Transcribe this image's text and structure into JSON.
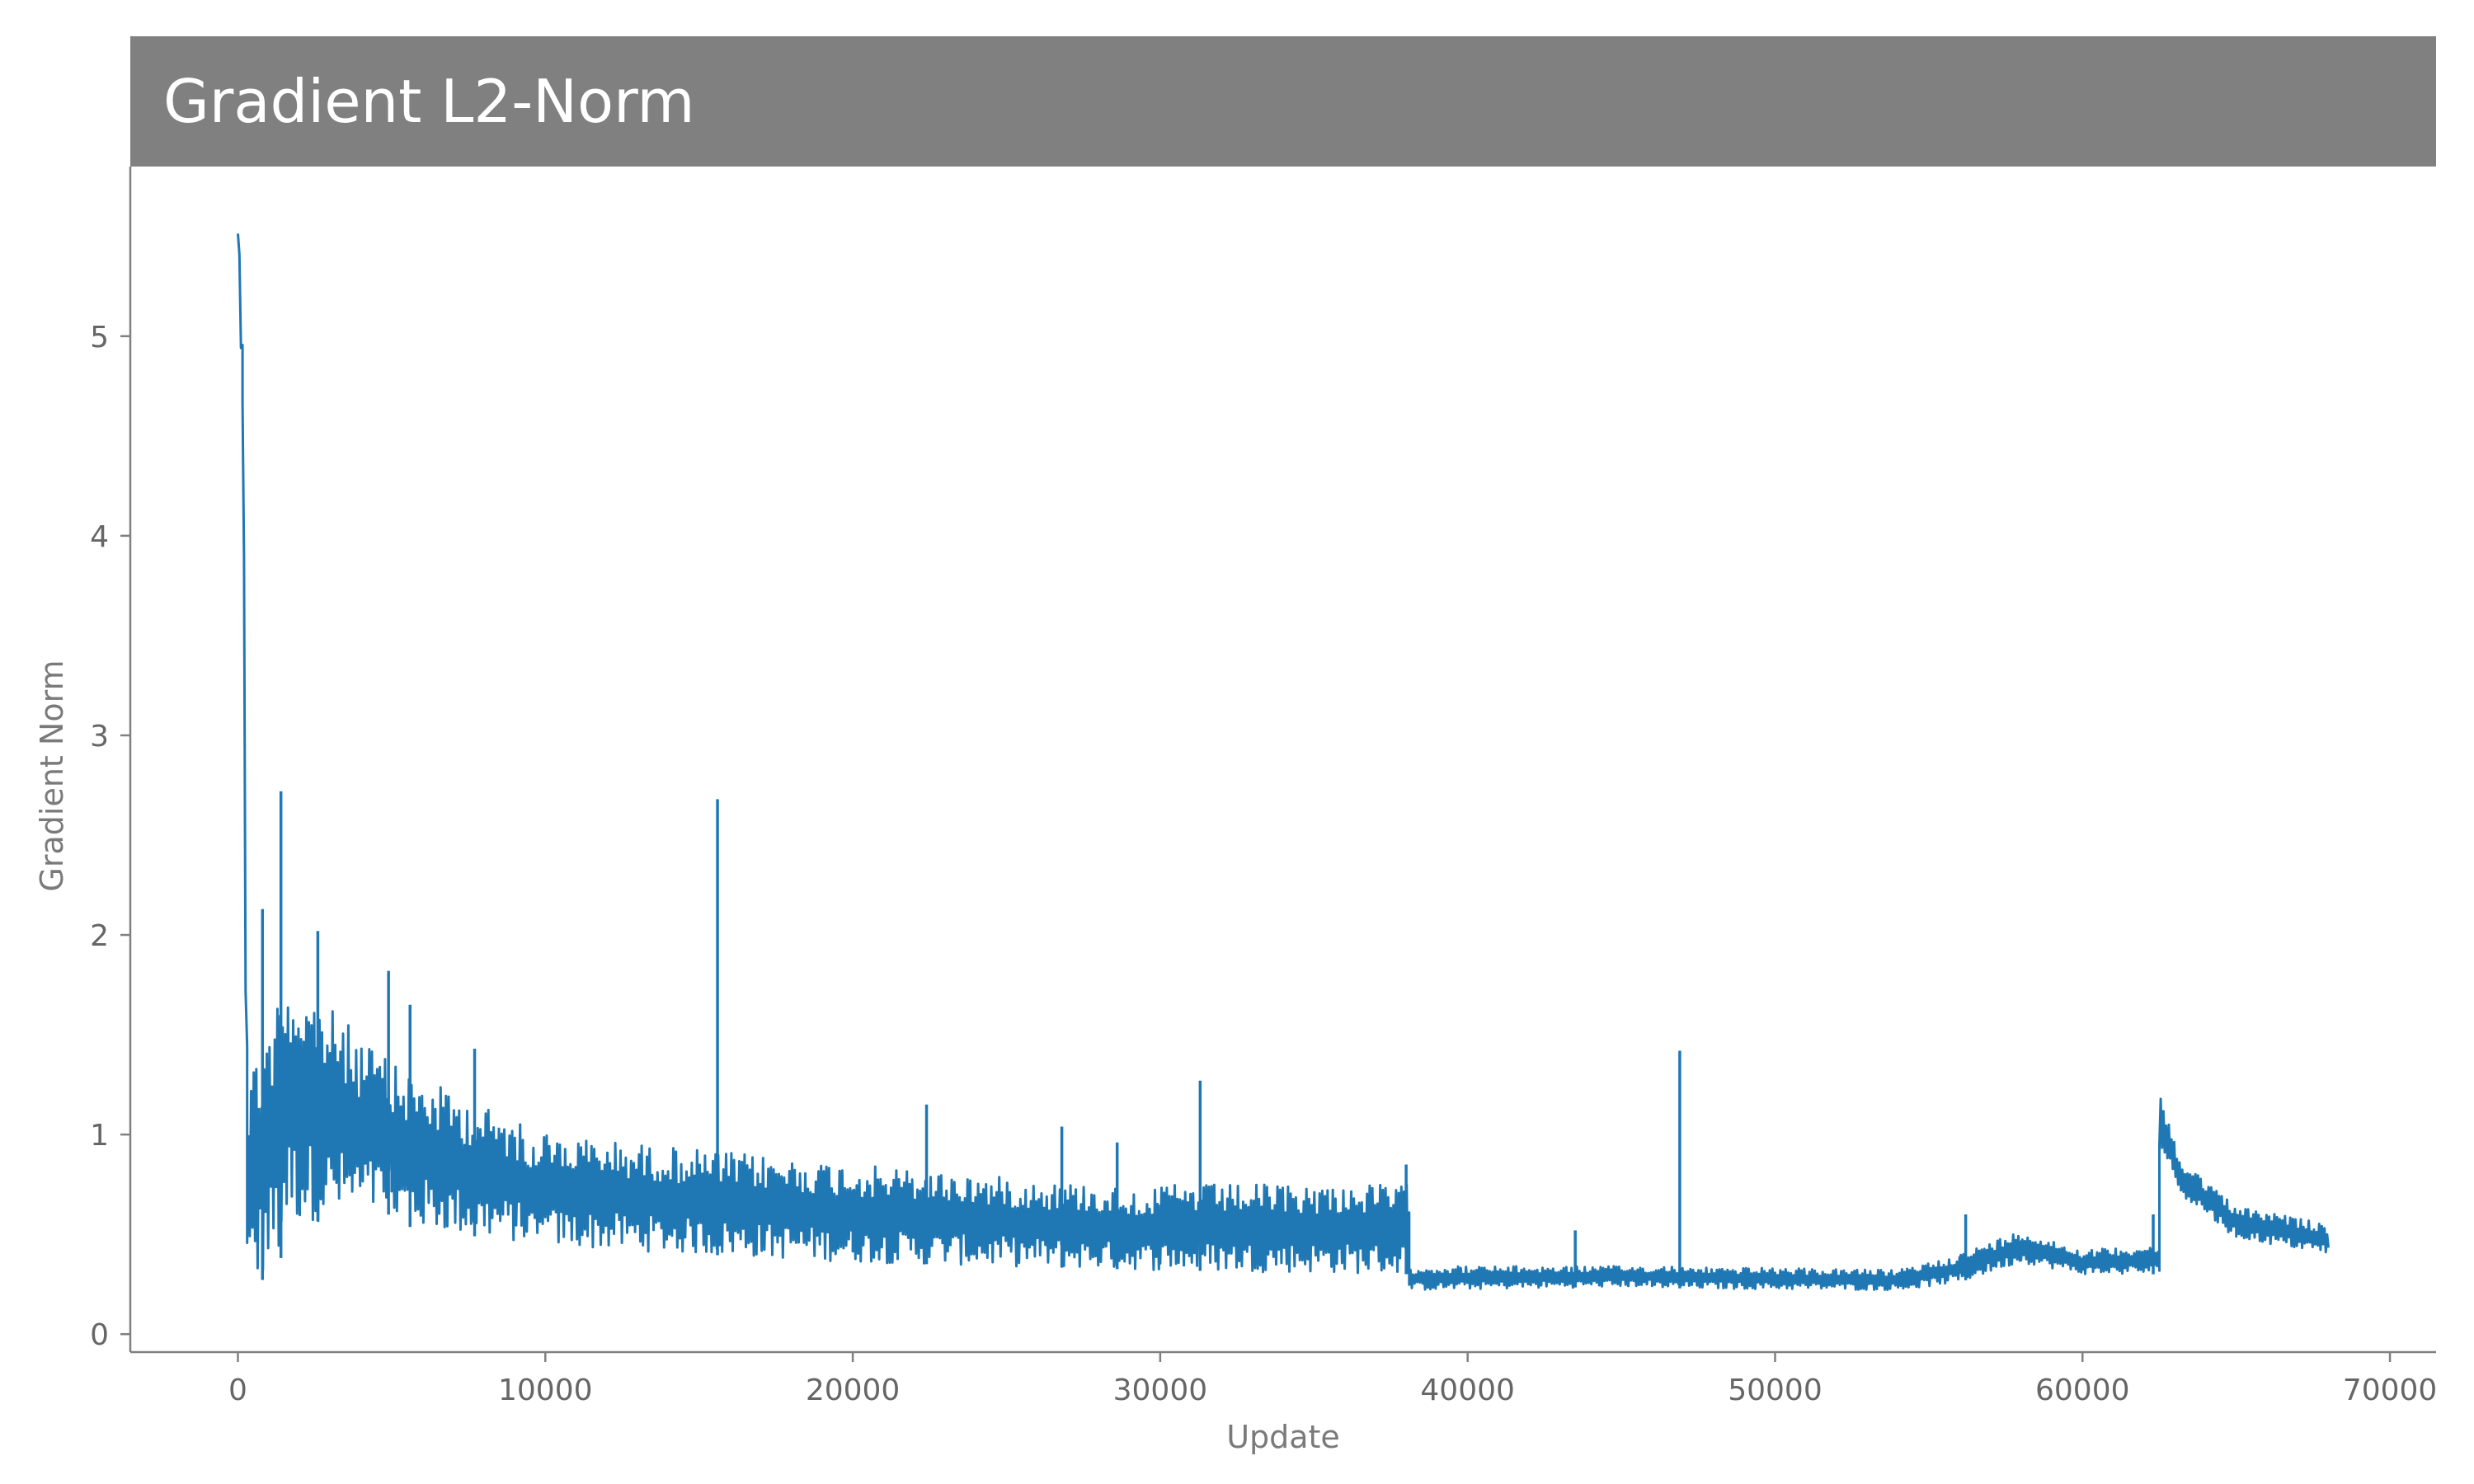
{
  "chart_data": {
    "type": "line",
    "title": "Gradient L2-Norm",
    "xlabel": "Update",
    "ylabel": "Gradient Norm",
    "xlim": [
      -3500,
      71500
    ],
    "ylim": [
      -0.09,
      5.85
    ],
    "xticks": [
      0,
      10000,
      20000,
      30000,
      40000,
      50000,
      60000,
      70000
    ],
    "yticks": [
      0,
      1,
      2,
      3,
      4,
      5
    ],
    "grid": false,
    "legend": "none",
    "colors": {
      "line": "#1f77b4",
      "title_bg": "#808080",
      "title_text": "#ffffff",
      "axis": "#808080",
      "tick_text": "#666666"
    },
    "series": [
      {
        "segments": [
          {
            "x0": 0,
            "x1": 150,
            "lo0": 5.5,
            "lo1": 4.5,
            "hi0": 5.56,
            "hi1": 5.2
          },
          {
            "x0": 150,
            "x1": 300,
            "lo0": 4.5,
            "lo1": 0.2,
            "hi0": 5.2,
            "hi1": 2.0
          },
          {
            "x0": 300,
            "x1": 1500,
            "lo0": 0.18,
            "lo1": 0.4,
            "hi0": 1.3,
            "hi1": 1.8
          },
          {
            "x0": 1500,
            "x1": 5000,
            "lo0": 0.55,
            "lo1": 0.6,
            "hi0": 1.85,
            "hi1": 1.35
          },
          {
            "x0": 5000,
            "x1": 10000,
            "lo0": 0.55,
            "lo1": 0.44,
            "hi0": 1.35,
            "hi1": 1.0
          },
          {
            "x0": 10000,
            "x1": 20000,
            "lo0": 0.44,
            "lo1": 0.36,
            "hi0": 1.0,
            "hi1": 0.85
          },
          {
            "x0": 20000,
            "x1": 30000,
            "lo0": 0.36,
            "lo1": 0.32,
            "hi0": 0.85,
            "hi1": 0.72
          },
          {
            "x0": 30000,
            "x1": 38100,
            "lo0": 0.32,
            "lo1": 0.3,
            "hi0": 0.75,
            "hi1": 0.75
          },
          {
            "x0": 38100,
            "x1": 46000,
            "lo0": 0.22,
            "lo1": 0.24,
            "hi0": 0.34,
            "hi1": 0.34
          },
          {
            "x0": 46000,
            "x1": 54000,
            "lo0": 0.23,
            "lo1": 0.22,
            "hi0": 0.34,
            "hi1": 0.32
          },
          {
            "x0": 54000,
            "x1": 56000,
            "lo0": 0.22,
            "lo1": 0.26,
            "hi0": 0.32,
            "hi1": 0.4
          },
          {
            "x0": 56000,
            "x1": 58000,
            "lo0": 0.26,
            "lo1": 0.36,
            "hi0": 0.4,
            "hi1": 0.52
          },
          {
            "x0": 58000,
            "x1": 60000,
            "lo0": 0.36,
            "lo1": 0.3,
            "hi0": 0.52,
            "hi1": 0.42
          },
          {
            "x0": 60000,
            "x1": 62500,
            "lo0": 0.3,
            "lo1": 0.3,
            "hi0": 0.42,
            "hi1": 0.45
          },
          {
            "x0": 62500,
            "x1": 63200,
            "lo0": 0.95,
            "lo1": 0.7,
            "hi0": 1.2,
            "hi1": 0.88
          },
          {
            "x0": 63200,
            "x1": 65000,
            "lo0": 0.7,
            "lo1": 0.48,
            "hi0": 0.88,
            "hi1": 0.64
          },
          {
            "x0": 65000,
            "x1": 68000,
            "lo0": 0.48,
            "lo1": 0.4,
            "hi0": 0.64,
            "hi1": 0.55
          }
        ],
        "spikes": [
          {
            "x": 1400,
            "y": 2.72
          },
          {
            "x": 15600,
            "y": 2.68
          },
          {
            "x": 46900,
            "y": 1.42
          },
          {
            "x": 31300,
            "y": 1.27
          },
          {
            "x": 22400,
            "y": 1.15
          },
          {
            "x": 7700,
            "y": 1.43
          },
          {
            "x": 4900,
            "y": 1.82
          },
          {
            "x": 5600,
            "y": 1.65
          },
          {
            "x": 2600,
            "y": 2.02
          },
          {
            "x": 800,
            "y": 2.13
          },
          {
            "x": 28600,
            "y": 0.96
          },
          {
            "x": 26800,
            "y": 1.04
          },
          {
            "x": 43500,
            "y": 0.52
          },
          {
            "x": 38000,
            "y": 0.85
          },
          {
            "x": 62300,
            "y": 0.6
          },
          {
            "x": 56200,
            "y": 0.6
          }
        ]
      }
    ]
  }
}
